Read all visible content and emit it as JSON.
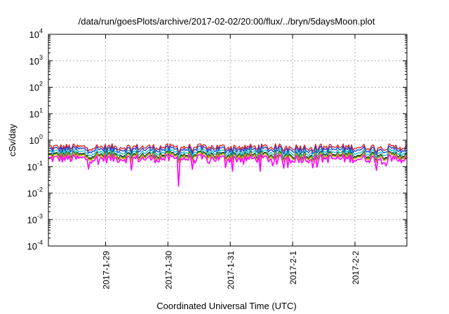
{
  "chart_data": {
    "type": "line",
    "title": "/data/run/goesPlots/archive/2017-02-02/20:00/flux/../bryn/5daysMoon.plot",
    "xlabel": "Coordinated Universal Time (UTC)",
    "ylabel": "cSv/day",
    "yscale": "log",
    "ylim": [
      0.0001,
      10000
    ],
    "xlim": [
      "2017-01-28 02:00",
      "2017-02-02 20:00"
    ],
    "grid": true,
    "y_ticks": [
      {
        "base": "10",
        "exp": "-4",
        "value": 0.0001
      },
      {
        "base": "10",
        "exp": "-3",
        "value": 0.001
      },
      {
        "base": "10",
        "exp": "-2",
        "value": 0.01
      },
      {
        "base": "10",
        "exp": "-1",
        "value": 0.1
      },
      {
        "base": "10",
        "exp": "0",
        "value": 1
      },
      {
        "base": "10",
        "exp": "1",
        "value": 10
      },
      {
        "base": "10",
        "exp": "2",
        "value": 100
      },
      {
        "base": "10",
        "exp": "3",
        "value": 1000
      },
      {
        "base": "10",
        "exp": "4",
        "value": 10000
      }
    ],
    "x_ticks": [
      {
        "label": "2017-1-29",
        "value": "2017-01-29 00:00"
      },
      {
        "label": "2017-1-30",
        "value": "2017-01-30 00:00"
      },
      {
        "label": "2017-1-31",
        "value": "2017-01-31 00:00"
      },
      {
        "label": "2017-2-1",
        "value": "2017-02-01 00:00"
      },
      {
        "label": "2017-2-2",
        "value": "2017-02-02 00:00"
      }
    ],
    "series": [
      {
        "color": "#d62728",
        "level": 0.55
      },
      {
        "color": "#1f3fd6",
        "level": 0.45
      },
      {
        "color": "#22c1c1",
        "level": 0.35
      },
      {
        "color": "#111111",
        "level": 0.28
      },
      {
        "color": "#2ca02c",
        "level": 0.26
      },
      {
        "color": "#e8a020",
        "level": 0.24
      },
      {
        "color": "#ff00ff",
        "level": 0.2
      }
    ]
  }
}
